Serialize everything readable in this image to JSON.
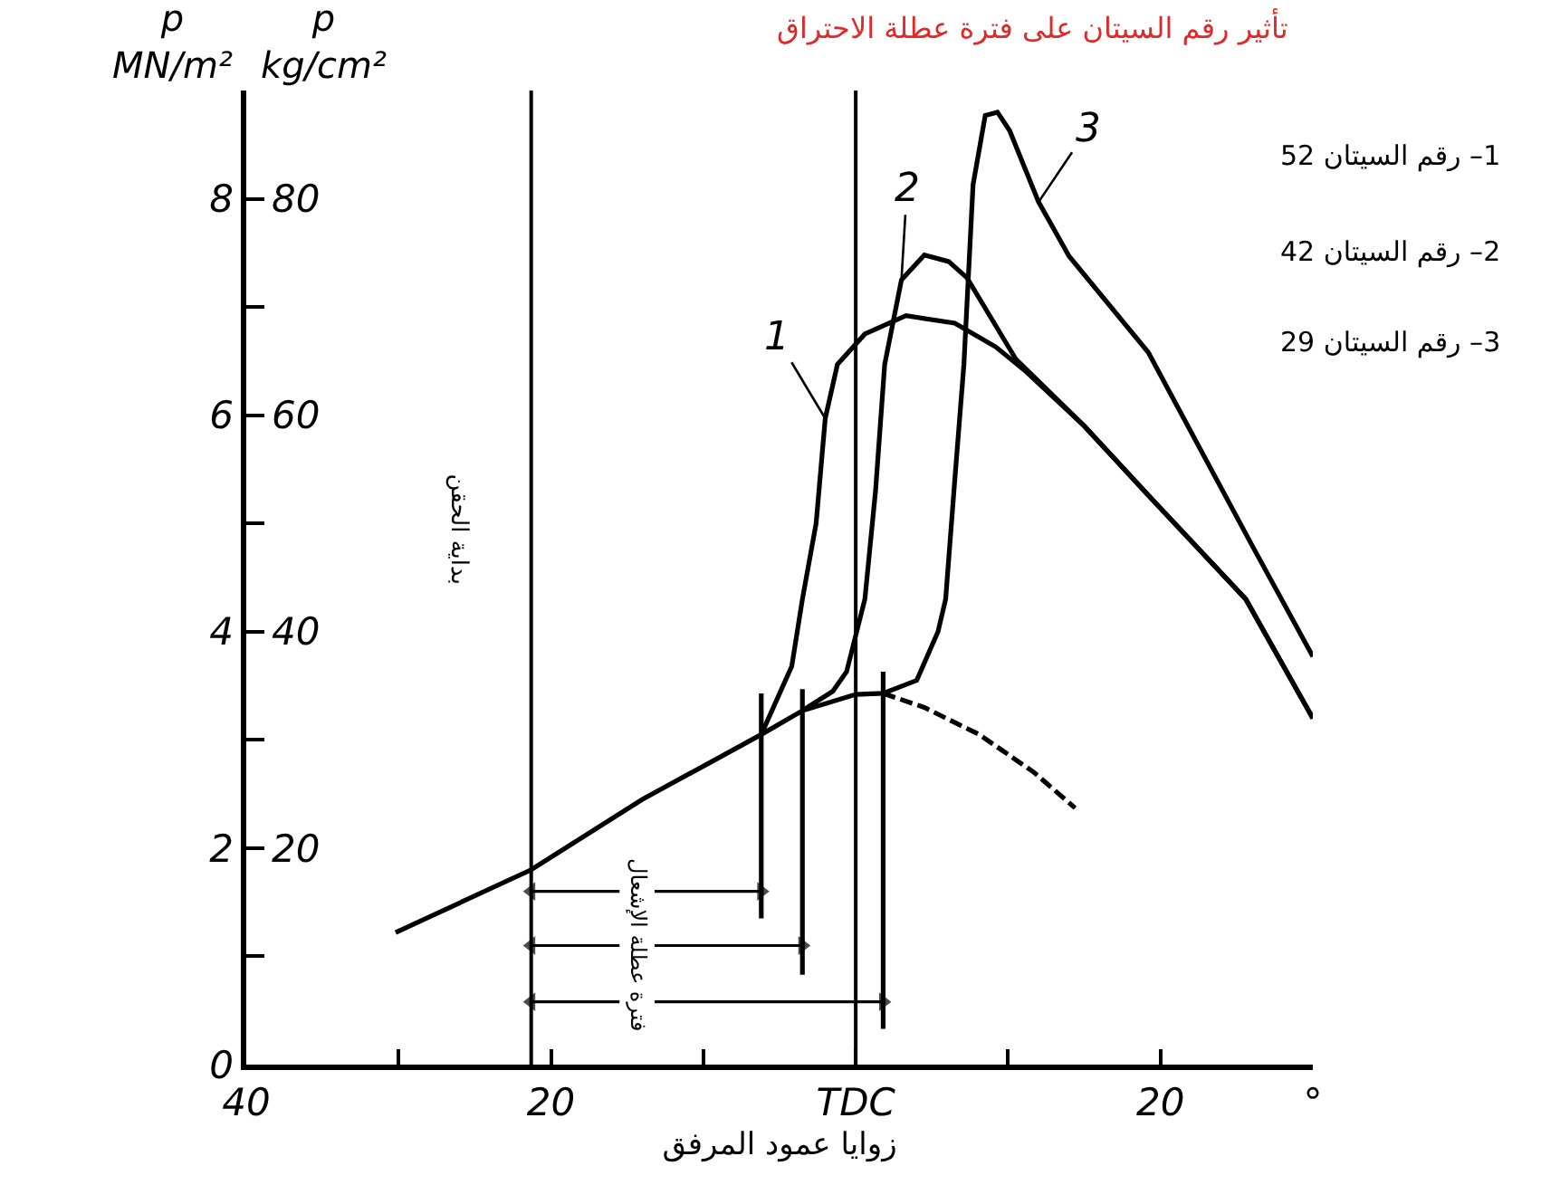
{
  "chart_data": {
    "type": "line",
    "title": "تأثير رقم السيتان على فترة عطلة الاحتراق",
    "xlabel": "زوايا عمود المرفق",
    "ylabel": "p\nMN/m²",
    "y2label": "p\nkg/cm²",
    "xlim": [
      -40,
      30
    ],
    "xticks": [
      {
        "value": -40,
        "label": "40"
      },
      {
        "value": -30,
        "label": null
      },
      {
        "value": -20,
        "label": "20"
      },
      {
        "value": -10,
        "label": null
      },
      {
        "value": 0,
        "label": "TDC"
      },
      {
        "value": 10,
        "label": null
      },
      {
        "value": 20,
        "label": "20"
      },
      {
        "value": 30,
        "label": "°"
      }
    ],
    "ylim": [
      0,
      9
    ],
    "yticks": [
      0,
      {
        "value": 1,
        "label": null
      },
      2,
      {
        "value": 3,
        "label": null
      },
      4,
      {
        "value": 5,
        "label": null
      },
      6,
      {
        "value": 7,
        "label": null
      },
      8
    ],
    "y2lim": [
      0,
      90
    ],
    "y2ticks": [
      20,
      40,
      60,
      80
    ],
    "grid": false,
    "line_style": "solid",
    "series": [
      {
        "name": "1",
        "color": "#000000",
        "x": [
          -6.2,
          -4.2,
          -3.5,
          -2.6,
          -2.0,
          -1.2,
          0.6,
          3.3,
          6.5,
          9.2,
          11.2,
          15,
          19.6,
          25.6,
          30
        ],
        "values": [
          3.05,
          3.68,
          4.3,
          5.0,
          5.97,
          6.47,
          6.75,
          6.92,
          6.85,
          6.63,
          6.4,
          5.9,
          5.2,
          4.3,
          3.2
        ]
      },
      {
        "name": "2",
        "color": "#000000",
        "x": [
          -3.5,
          -1.5,
          -0.6,
          0.6,
          1.3,
          1.9,
          3.0,
          4.5,
          6.1,
          7.3,
          10.5,
          15,
          19.6,
          25.6,
          30
        ],
        "values": [
          3.27,
          3.45,
          3.63,
          4.3,
          5.3,
          6.47,
          7.25,
          7.48,
          7.42,
          7.27,
          6.52,
          5.9,
          5.2,
          4.3,
          3.2
        ]
      },
      {
        "name": "3",
        "color": "#000000",
        "x": [
          -30.2,
          -21.3,
          -14,
          -6.2,
          -3.5,
          0,
          1.8,
          4.0,
          5.4,
          5.9,
          6.5,
          7.1,
          7.7,
          8.5,
          9.3,
          10.1,
          12,
          14,
          19.2,
          26,
          30
        ],
        "values": [
          1.22,
          1.8,
          2.45,
          3.05,
          3.27,
          3.42,
          3.43,
          3.55,
          4.0,
          4.3,
          5.4,
          6.47,
          8.13,
          8.77,
          8.8,
          8.63,
          7.97,
          7.47,
          6.58,
          4.8,
          3.77
        ]
      },
      {
        "color": "#000000",
        "line_style": "dashed",
        "x": [
          1.8,
          4.5,
          8.1,
          11.7,
          14.4
        ],
        "values": [
          3.43,
          3.3,
          3.05,
          2.7,
          2.37
        ]
      },
      {
        "color": "#000000",
        "marker": "triangle",
        "x": [
          -21.3,
          -15.5,
          null,
          -13.2,
          -6.2
        ],
        "values": [
          1.6,
          1.6,
          null,
          1.6,
          1.6
        ]
      },
      {
        "color": "#000000",
        "marker": "triangle",
        "x": [
          -21.3,
          -15.5,
          null,
          -13.2,
          -3.5
        ],
        "values": [
          1.1,
          1.1,
          null,
          1.1,
          1.1
        ]
      },
      {
        "color": "#000000",
        "marker": "triangle",
        "x": [
          -21.3,
          -15.5,
          null,
          -13.2,
          1.8
        ],
        "values": [
          0.58,
          0.58,
          null,
          0.58,
          0.58
        ]
      },
      {
        "color": "#000000",
        "x": [
          -6.2,
          -6.2
        ],
        "values": [
          3.43,
          1.35
        ]
      },
      {
        "color": "#000000",
        "x": [
          -3.5,
          -3.5
        ],
        "values": [
          3.47,
          0.83
        ]
      },
      {
        "color": "#000000",
        "x": [
          1.8,
          1.8
        ],
        "values": [
          3.63,
          0.33
        ]
      }
    ],
    "ref_lines": [
      {
        "axis": "x",
        "value": -21.3,
        "label": "بداية الحقن"
      },
      {
        "axis": "x",
        "value": 0
      }
    ],
    "annotations": [
      "1– رقم السيتان 52",
      "2– رقم السيتان 42",
      "3– رقم السيتان 29",
      "فترة عطلة الإشعال"
    ]
  }
}
